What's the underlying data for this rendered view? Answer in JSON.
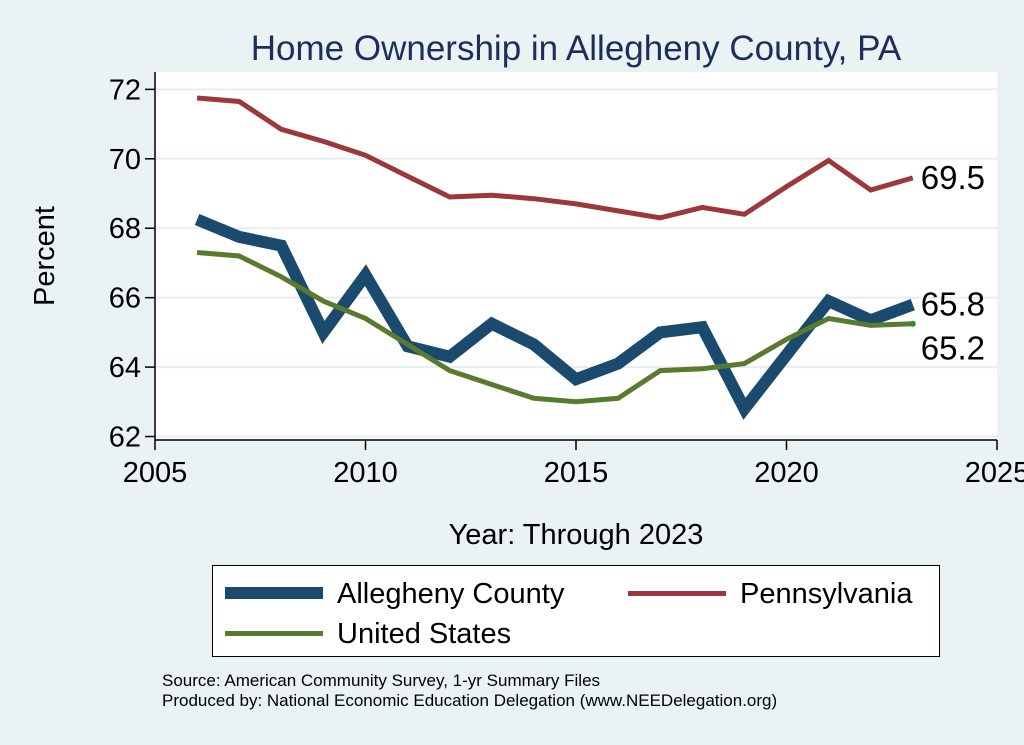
{
  "chart_data": {
    "type": "line",
    "title": "Home Ownership in Allegheny County, PA",
    "xlabel": "Year: Through 2023",
    "ylabel": "Percent",
    "xlim": [
      2005,
      2025
    ],
    "ylim": [
      61.9,
      72.5
    ],
    "xticks": [
      2005,
      2010,
      2015,
      2020,
      2025
    ],
    "yticks": [
      62,
      64,
      66,
      68,
      70,
      72
    ],
    "xtick_labels": [
      "2005",
      "2010",
      "2015",
      "2020",
      "2025"
    ],
    "ytick_labels": [
      "62",
      "64",
      "66",
      "68",
      "70",
      "72"
    ],
    "grid": true,
    "legend_position": "bottom",
    "x": [
      2006,
      2007,
      2008,
      2009,
      2010,
      2011,
      2012,
      2013,
      2014,
      2015,
      2016,
      2017,
      2018,
      2019,
      2020,
      2021,
      2022,
      2023
    ],
    "series": [
      {
        "name": "Allegheny County",
        "color": "#1a4a6e",
        "values": [
          68.25,
          67.75,
          67.5,
          65.0,
          66.65,
          64.6,
          64.3,
          65.25,
          64.65,
          63.65,
          64.1,
          65.0,
          65.15,
          62.8,
          64.35,
          65.9,
          65.35,
          65.8
        ],
        "end_label": "65.8"
      },
      {
        "name": "Pennsylvania",
        "color": "#9b383c",
        "values": [
          71.75,
          71.65,
          70.85,
          70.5,
          70.1,
          69.5,
          68.9,
          68.95,
          68.85,
          68.7,
          68.5,
          68.3,
          68.6,
          68.4,
          69.2,
          69.95,
          69.1,
          69.45
        ],
        "end_label": "69.5"
      },
      {
        "name": "United States",
        "color": "#5a7a2e",
        "values": [
          67.3,
          67.2,
          66.6,
          65.9,
          65.4,
          64.65,
          63.9,
          63.5,
          63.1,
          63.0,
          63.1,
          63.9,
          63.95,
          64.1,
          64.8,
          65.4,
          65.2,
          65.25
        ],
        "end_label": "65.2"
      }
    ]
  },
  "footnotes": {
    "source": "Source: American Community Survey, 1-yr Summary Files",
    "produced_by": "Produced by: National Economic Education Delegation (www.NEEDelegation.org)"
  }
}
